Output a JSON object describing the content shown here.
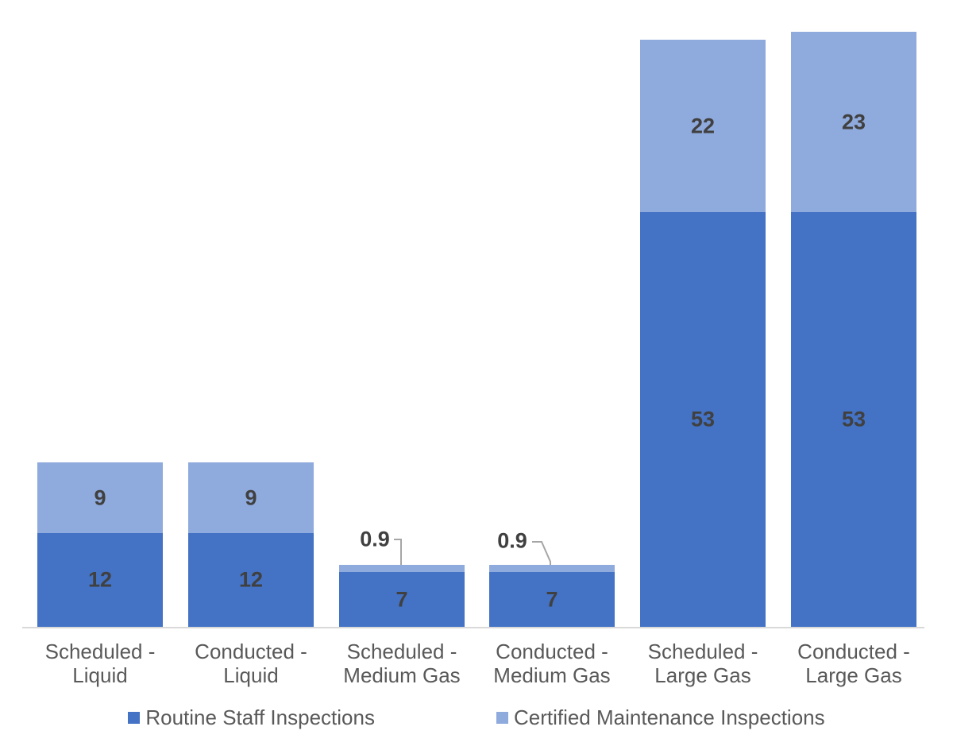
{
  "chart_data": {
    "type": "bar",
    "stacked": true,
    "title": "",
    "xlabel": "",
    "ylabel": "",
    "ylim": [
      0,
      80
    ],
    "gridlines": false,
    "y_axis_labels_visible": false,
    "legend_position": "bottom",
    "categories": [
      "Scheduled - Liquid",
      "Conducted - Liquid",
      "Scheduled - Medium Gas",
      "Conducted - Medium Gas",
      "Scheduled - Large Gas",
      "Conducted - Large Gas"
    ],
    "category_label_lines": [
      [
        "Scheduled -",
        "Liquid"
      ],
      [
        "Conducted -",
        "Liquid"
      ],
      [
        "Scheduled -",
        "Medium Gas"
      ],
      [
        "Conducted -",
        "Medium Gas"
      ],
      [
        "Scheduled -",
        "Large Gas"
      ],
      [
        "Conducted -",
        "Large Gas"
      ]
    ],
    "series": [
      {
        "name": "Routine Staff Inspections",
        "color": "#4472C4",
        "values": [
          12,
          12,
          7,
          7,
          53,
          53
        ],
        "data_labels": [
          "12",
          "12",
          "7",
          "7",
          "53",
          "53"
        ]
      },
      {
        "name": "Certified Maintenance Inspections",
        "color": "#8FAADC",
        "values": [
          9,
          9,
          0.9,
          0.9,
          22,
          23
        ],
        "data_labels": [
          "9",
          "9",
          "0.9",
          "0.9",
          "22",
          "23"
        ]
      }
    ],
    "callout_labels": [
      {
        "series": 1,
        "index": 2,
        "text": "0.9"
      },
      {
        "series": 1,
        "index": 3,
        "text": "0.9"
      }
    ]
  },
  "colors": {
    "series_1": "#4472C4",
    "series_2": "#8FAADC",
    "value_label": "#404040",
    "axis_text": "#595959",
    "axis_line": "#D9D9D9",
    "leader_line": "#A6A6A6",
    "background": "#FFFFFF"
  }
}
